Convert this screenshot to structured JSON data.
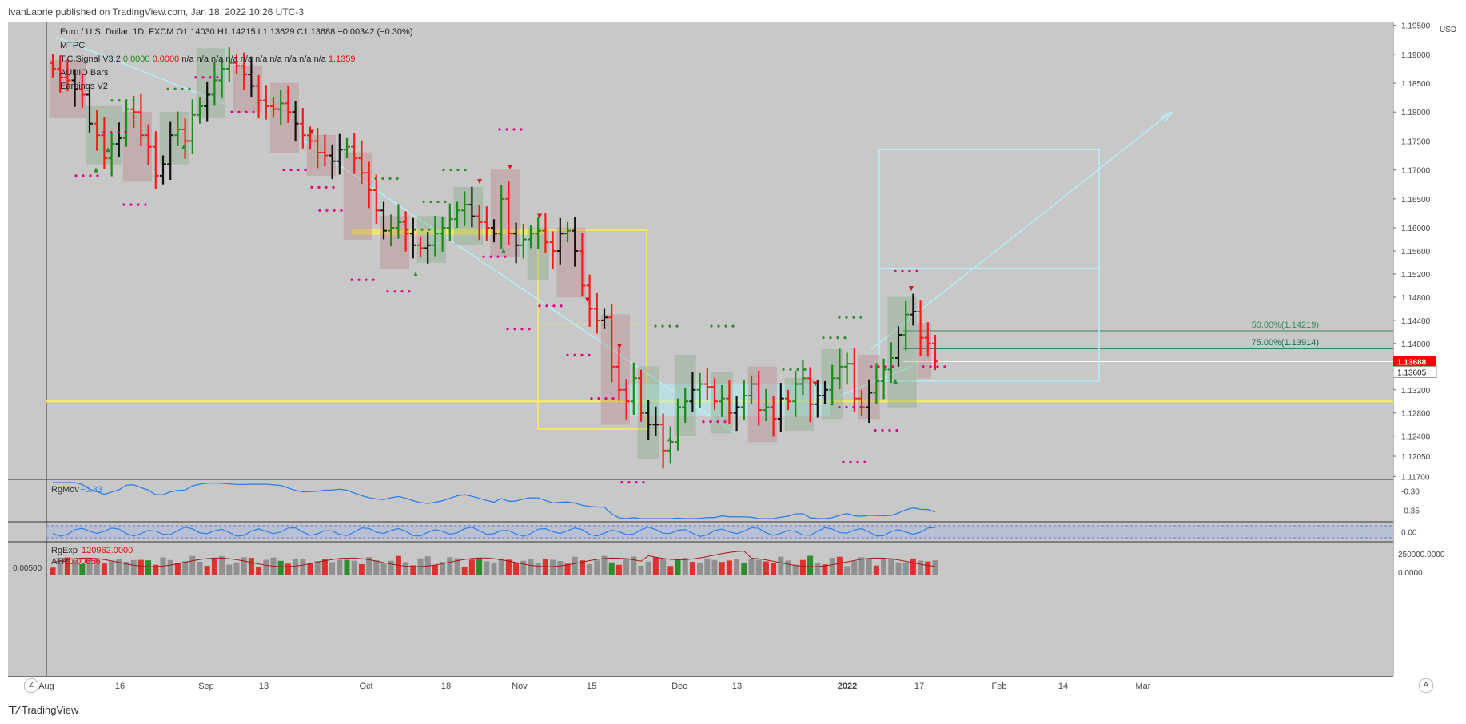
{
  "header": {
    "published": "IvanLabrie published on TradingView.com, Jan 18, 2022 10:26 UTC-3"
  },
  "legend": {
    "symbol_line": "Euro / U.S. Dollar, 1D, FXCM  O1.14030  H1.14215  L1.13629  C1.13688  −0.00342 (−0.30%)",
    "mtpc": "MTPC",
    "signal_name": "T.C.Signal V3.2",
    "signal_v1": "0.0000",
    "signal_v2": "0.0000",
    "signal_na": "n/a  n/a  n/a  n/a  n/a  n/a  n/a  n/a  n/a  n/a",
    "signal_v3": "1.1359",
    "audio": "AUDIO Bars",
    "earnings": "Earnings V2"
  },
  "price_axis": {
    "currency": "USD",
    "labels": [
      "1.19500",
      "1.19000",
      "1.18500",
      "1.18000",
      "1.17500",
      "1.17000",
      "1.16500",
      "1.16000",
      "1.15600",
      "1.15200",
      "1.14800",
      "1.14400",
      "1.14000",
      "1.13200",
      "1.12800",
      "1.12400",
      "1.12050",
      "1.11700"
    ],
    "last_price": "1.13688",
    "level_price": "1.13605",
    "fib50": "50.00%(1.14219)",
    "fib75": "75.00%(1.13914)"
  },
  "time_axis": {
    "labels": [
      "Aug",
      "16",
      "Sep",
      "13",
      "Oct",
      "18",
      "Nov",
      "15",
      "Dec",
      "13",
      "2022",
      "17",
      "Feb",
      "14",
      "Mar"
    ]
  },
  "panes": {
    "rgmov": {
      "name": "RgMov",
      "value": "−0.33",
      "axis": [
        "-0.30",
        "-0.35"
      ]
    },
    "osc": {
      "axis": [
        "0.00"
      ]
    },
    "rgexp": {
      "name": "RgExp",
      "value": "120962.0000",
      "atr_label": "ATR",
      "atr_value": "0.00656",
      "left_value": "0.00500",
      "axis": [
        "250000.0000",
        "0.0000"
      ]
    }
  },
  "footer": {
    "brand": "TradingView",
    "z_label": "Z",
    "a_label": "A"
  },
  "colors": {
    "up": "#1a8a1a",
    "down": "#ff1a1a",
    "neutral": "#111111",
    "bg": "#c8c8c8",
    "aqua": "#b4f0f6",
    "yellow": "#ffef4a"
  },
  "chart_data": {
    "type": "ohlc",
    "title": "Euro / U.S. Dollar, 1D, FXCM",
    "ylim": [
      1.1165,
      1.1955
    ],
    "y_ticks": [
      1.195,
      1.19,
      1.185,
      1.18,
      1.175,
      1.17,
      1.165,
      1.16,
      1.156,
      1.152,
      1.148,
      1.144,
      1.14,
      1.132,
      1.128,
      1.124,
      1.1205,
      1.117
    ],
    "closes": [
      1.1875,
      1.186,
      1.1855,
      1.184,
      1.183,
      1.178,
      1.176,
      1.172,
      1.1745,
      1.1755,
      1.1805,
      1.18,
      1.176,
      1.174,
      1.169,
      1.171,
      1.176,
      1.177,
      1.175,
      1.1795,
      1.181,
      1.183,
      1.1855,
      1.1875,
      1.1885,
      1.188,
      1.1865,
      1.1845,
      1.182,
      1.181,
      1.1805,
      1.1815,
      1.18,
      1.178,
      1.176,
      1.175,
      1.173,
      1.1725,
      1.1715,
      1.1735,
      1.174,
      1.172,
      1.1695,
      1.1665,
      1.163,
      1.1595,
      1.16,
      1.161,
      1.159,
      1.157,
      1.1565,
      1.157,
      1.159,
      1.16,
      1.1615,
      1.163,
      1.164,
      1.162,
      1.161,
      1.16,
      1.159,
      1.165,
      1.159,
      1.157,
      1.158,
      1.159,
      1.1595,
      1.1575,
      1.156,
      1.159,
      1.1595,
      1.156,
      1.15,
      1.146,
      1.144,
      1.1445,
      1.136,
      1.132,
      1.13,
      1.134,
      1.128,
      1.126,
      1.126,
      1.1215,
      1.123,
      1.129,
      1.13,
      1.132,
      1.133,
      1.1325,
      1.13,
      1.1305,
      1.128,
      1.129,
      1.131,
      1.133,
      1.1285,
      1.129,
      1.127,
      1.1305,
      1.13,
      1.133,
      1.134,
      1.1295,
      1.131,
      1.132,
      1.134,
      1.136,
      1.1365,
      1.1305,
      1.129,
      1.1315,
      1.1335,
      1.1355,
      1.1375,
      1.1415,
      1.145,
      1.1455,
      1.141,
      1.14,
      1.1369
    ],
    "rgmov_ylim": [
      -0.38,
      -0.27
    ],
    "osc_ylim": [
      -0.5,
      0.5
    ],
    "rgexp_ylim": [
      0,
      350000
    ]
  }
}
